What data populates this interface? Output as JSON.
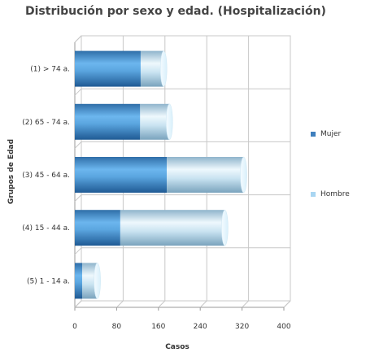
{
  "chart_data": {
    "type": "bar",
    "orientation": "horizontal",
    "stacked": true,
    "style": "3d-cylinder",
    "title": "Distribución por sexo y edad. (Hospitalización)",
    "xlabel": "Casos",
    "ylabel": "Grupos de Edad",
    "categories": [
      "(1) > 74 a.",
      "(2) 65 - 74 a.",
      "(3) 45 - 64 a.",
      "(4) 15 - 44 a.",
      "(5) 1 - 14 a."
    ],
    "series": [
      {
        "name": "Mujer",
        "values": [
          126,
          125,
          176,
          87,
          14
        ],
        "color": "#4f8fc6"
      },
      {
        "name": "Hombre",
        "values": [
          44,
          56,
          147,
          200,
          29
        ],
        "color": "#a9d6f2"
      }
    ],
    "xlim": [
      0,
      400
    ],
    "xticks": [
      "0",
      "80",
      "160",
      "240",
      "320",
      "400"
    ],
    "grid": true,
    "legend_position": "right"
  }
}
